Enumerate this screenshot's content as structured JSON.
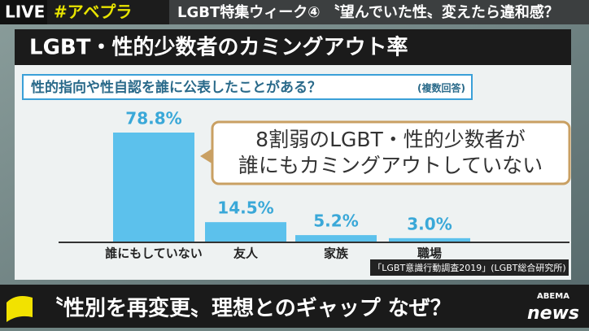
{
  "header": {
    "live": "LIVE",
    "hashtag": "#アベプラ",
    "headline": "LGBT特集ウィーク④ 〝望んでいた性〟変えたら違和感？"
  },
  "chart_data": {
    "type": "bar",
    "title": "LGBT・性的少数者のカミングアウト率",
    "subtitle": "性的指向や性自認を誰に公表したことがある？",
    "subtitle_note": "(複数回答)",
    "categories": [
      "誰にもしていない",
      "友人",
      "家族",
      "職場"
    ],
    "values": [
      78.8,
      14.5,
      5.2,
      3.0
    ],
    "value_labels": [
      "78.8%",
      "14.5%",
      "5.2%",
      "3.0%"
    ],
    "color": "#5cc1ec",
    "annotation": [
      "8割弱のLGBT・性的少数者が",
      "誰にもカミングアウトしていない"
    ],
    "source": "「LGBT意識行動調査2019」(LGBT総合研究所)"
  },
  "ticker": {
    "text": "〝性別を再変更〟理想とのギャップ なぜ？"
  },
  "logo": {
    "brand": "ABEMA",
    "name": "news"
  }
}
